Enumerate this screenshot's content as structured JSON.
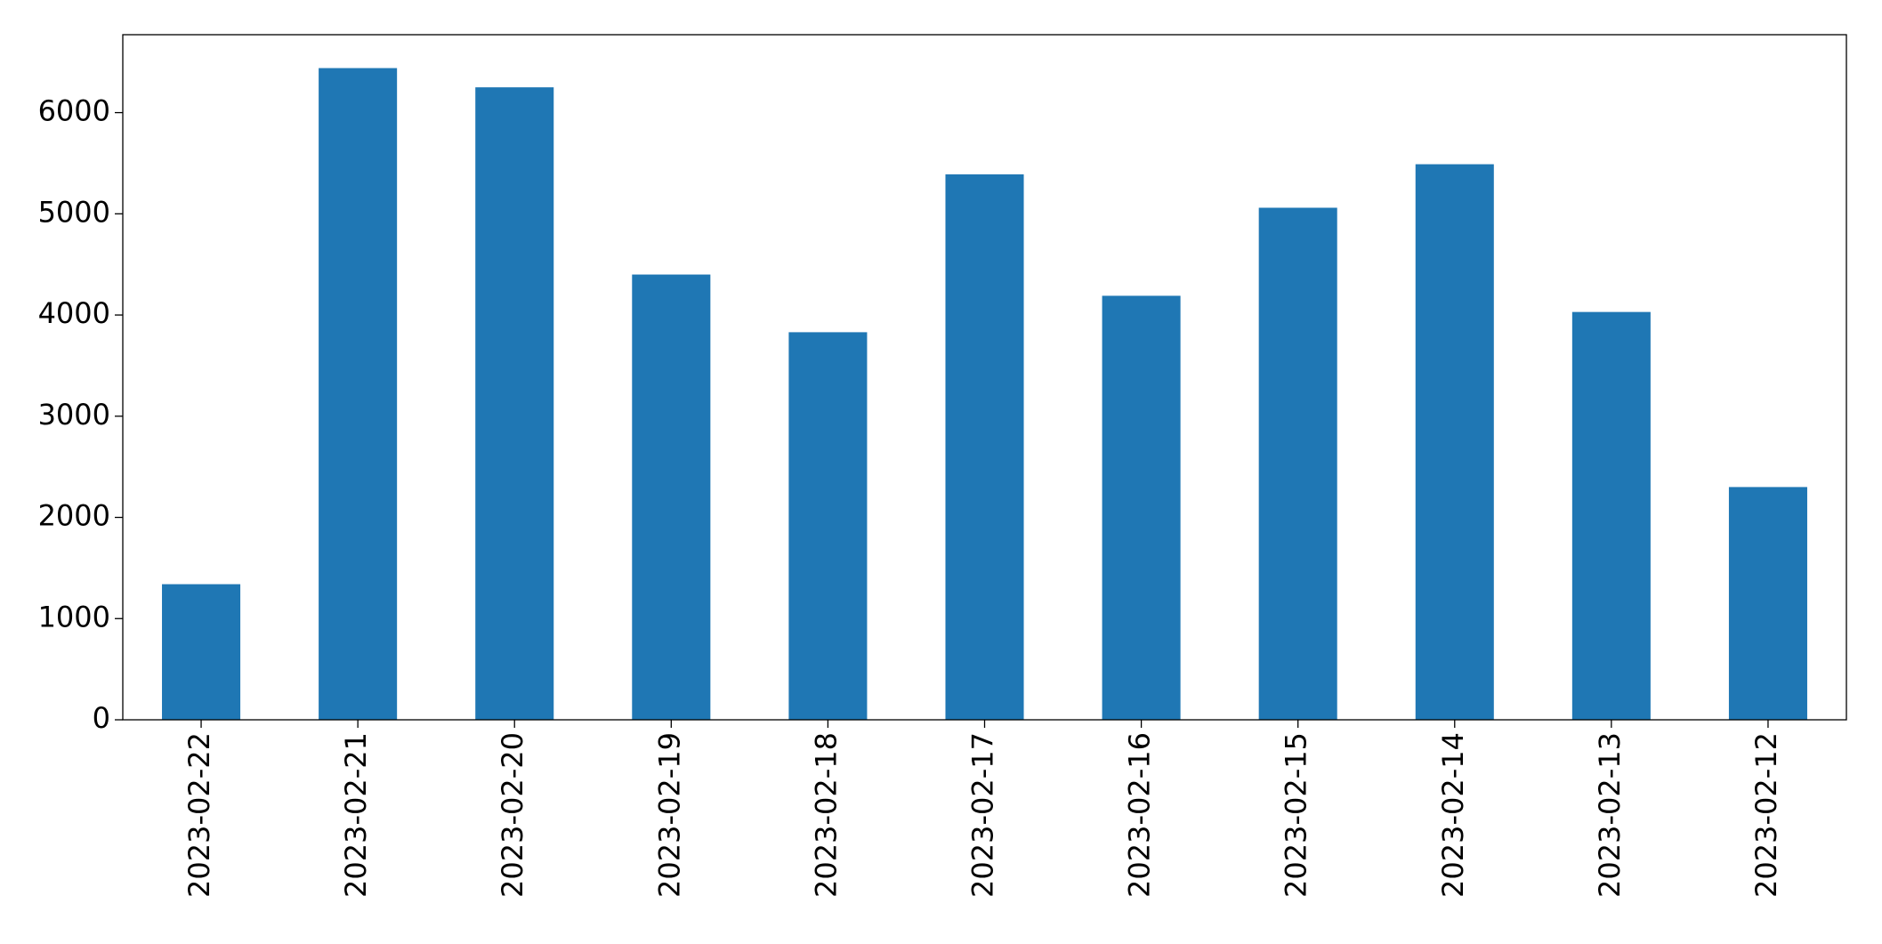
{
  "chart_data": {
    "type": "bar",
    "categories": [
      "2023-02-22",
      "2023-02-21",
      "2023-02-20",
      "2023-02-19",
      "2023-02-18",
      "2023-02-17",
      "2023-02-16",
      "2023-02-15",
      "2023-02-14",
      "2023-02-13",
      "2023-02-12"
    ],
    "values": [
      1340,
      6440,
      6250,
      4400,
      3830,
      5390,
      4190,
      5060,
      5490,
      4030,
      2300
    ],
    "color": "#1f77b4",
    "ylim": [
      0,
      6770
    ],
    "yticks": [
      0,
      1000,
      2000,
      3000,
      4000,
      5000,
      6000
    ],
    "grid": false
  }
}
